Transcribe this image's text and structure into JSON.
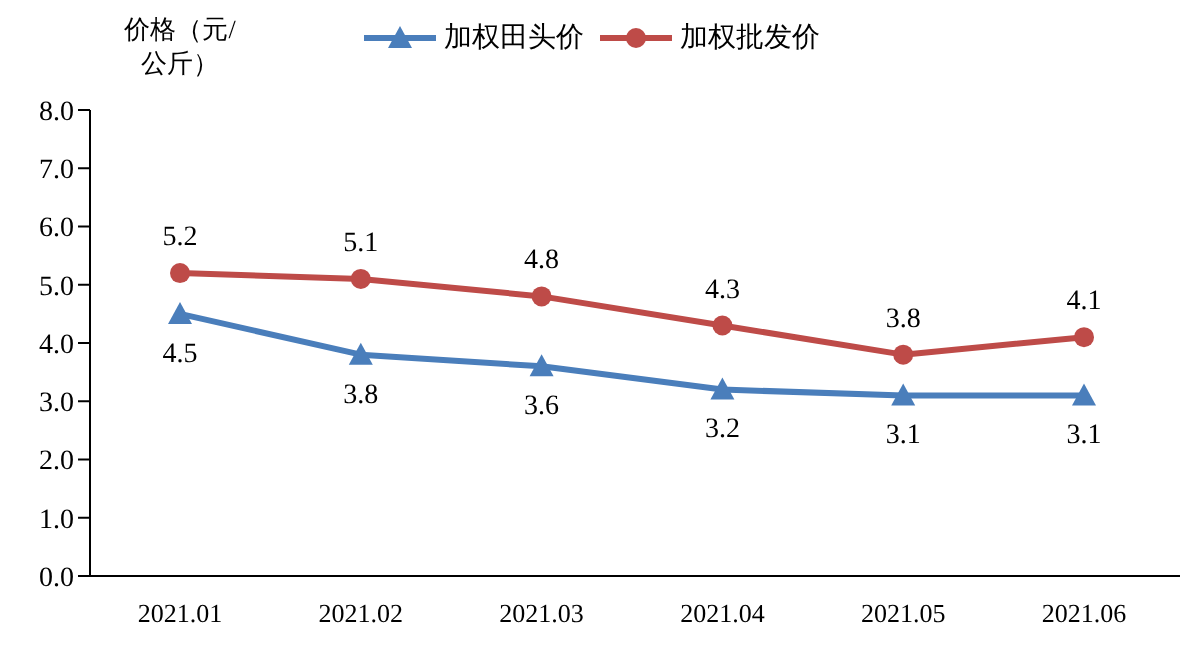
{
  "chart_data": {
    "type": "line",
    "ylabel": "价格（元/公斤）",
    "categories": [
      "2021.01",
      "2021.02",
      "2021.03",
      "2021.04",
      "2021.05",
      "2021.06"
    ],
    "series": [
      {
        "name": "加权田头价",
        "color": "#4a7ebb",
        "marker": "triangle",
        "values": [
          4.5,
          3.8,
          3.6,
          3.2,
          3.1,
          3.1
        ]
      },
      {
        "name": "加权批发价",
        "color": "#be4b48",
        "marker": "circle",
        "values": [
          5.2,
          5.1,
          4.8,
          4.3,
          3.8,
          4.1
        ]
      }
    ],
    "ylim": [
      0,
      8
    ],
    "yticks": [
      {
        "value": 0,
        "label": "0.0"
      },
      {
        "value": 1,
        "label": "1.0"
      },
      {
        "value": 2,
        "label": "2.0"
      },
      {
        "value": 3,
        "label": "3.0"
      },
      {
        "value": 4,
        "label": "4.0"
      },
      {
        "value": 5,
        "label": "5.0"
      },
      {
        "value": 6,
        "label": "6.0"
      },
      {
        "value": 7,
        "label": "7.0"
      },
      {
        "value": 8,
        "label": "8.0"
      }
    ],
    "grid": false,
    "legend": "top",
    "data_labels": true,
    "line_style": "solid"
  }
}
